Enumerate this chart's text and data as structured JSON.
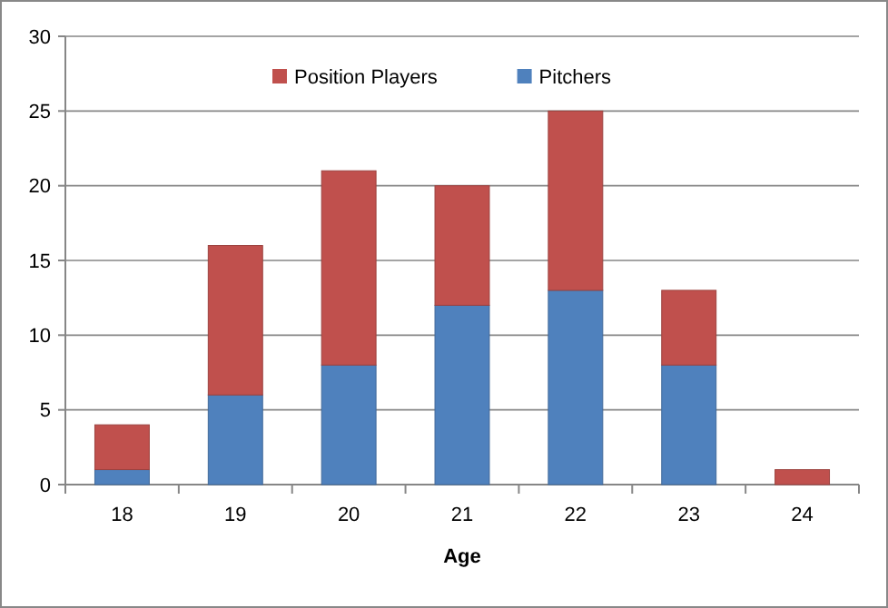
{
  "chart_data": {
    "type": "bar",
    "stacked": true,
    "xlabel": "Age",
    "categories": [
      "18",
      "19",
      "20",
      "21",
      "22",
      "23",
      "24"
    ],
    "series": [
      {
        "name": "Pitchers",
        "color": "#4f81bd",
        "values": [
          1,
          6,
          8,
          12,
          13,
          8,
          0
        ]
      },
      {
        "name": "Position Players",
        "color": "#c0504d",
        "values": [
          3,
          10,
          13,
          8,
          12,
          5,
          1
        ]
      }
    ],
    "ylim": [
      0,
      30
    ],
    "yticks": [
      0,
      5,
      10,
      15,
      20,
      25,
      30
    ],
    "grid": "y",
    "legend": "top"
  }
}
